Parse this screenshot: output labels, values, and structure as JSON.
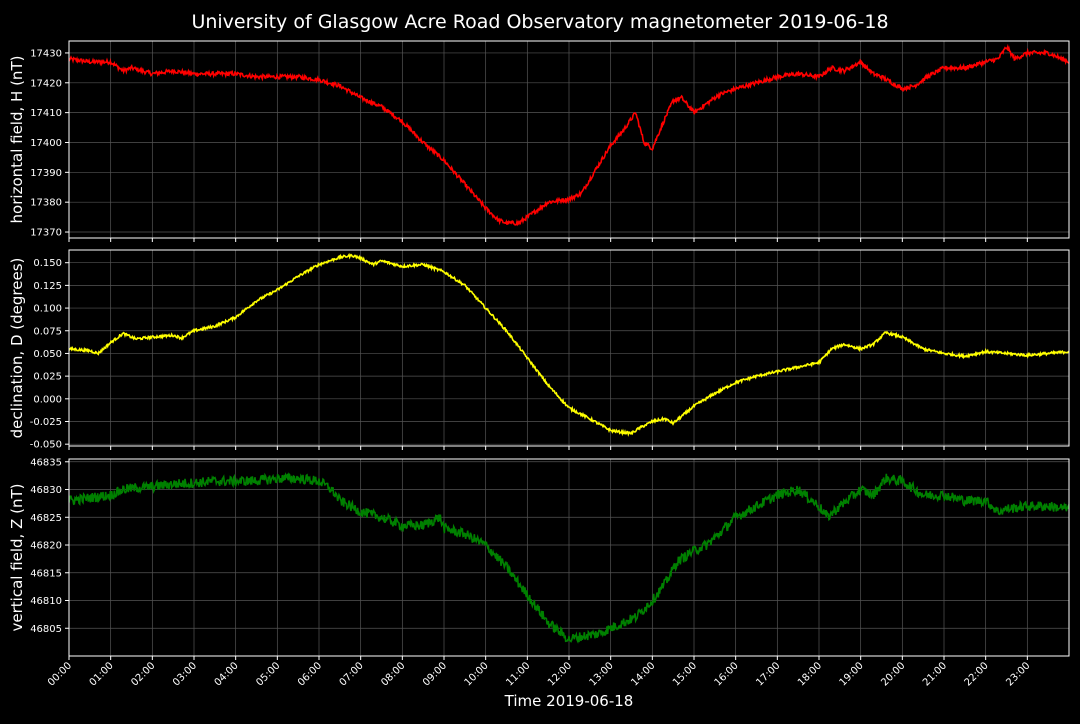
{
  "chart_data": {
    "type": "line",
    "title": "University of Glasgow Acre Road Observatory magnetometer 2019-06-18",
    "xlabel": "Time 2019-06-18",
    "x_unit": "hour of day",
    "xlim": [
      0,
      24
    ],
    "x_ticks": [
      "00:00",
      "01:00",
      "02:00",
      "03:00",
      "04:00",
      "05:00",
      "06:00",
      "07:00",
      "08:00",
      "09:00",
      "10:00",
      "11:00",
      "12:00",
      "13:00",
      "14:00",
      "15:00",
      "16:00",
      "17:00",
      "18:00",
      "19:00",
      "20:00",
      "21:00",
      "22:00",
      "23:00"
    ],
    "grid": true,
    "panels": [
      {
        "ylabel": "horizontal field, H (nT)",
        "color": "#ff0000",
        "ylim": [
          17368,
          17434
        ],
        "y_ticks": [
          17370,
          17380,
          17390,
          17400,
          17410,
          17420,
          17430
        ],
        "tick_decimals": 0,
        "noise": 0.7,
        "x": [
          0,
          0.5,
          1,
          1.3,
          1.5,
          2,
          2.5,
          3,
          3.5,
          4,
          4.5,
          5,
          5.5,
          6,
          6.5,
          7,
          7.5,
          8,
          8.5,
          9,
          9.5,
          10,
          10.3,
          10.5,
          10.8,
          11,
          11.3,
          11.5,
          12,
          12.3,
          12.6,
          13,
          13.3,
          13.6,
          13.8,
          14,
          14.3,
          14.5,
          14.7,
          15,
          15.3,
          15.6,
          16,
          16.5,
          17,
          17.5,
          18,
          18.3,
          18.6,
          19,
          19.3,
          19.5,
          20,
          20.3,
          20.6,
          21,
          21.5,
          22,
          22.3,
          22.5,
          22.7,
          23,
          23.5,
          24
        ],
        "y": [
          17428,
          17427,
          17427,
          17424,
          17425,
          17423,
          17424,
          17423,
          17423,
          17423,
          17422,
          17422,
          17422,
          17421,
          17419,
          17415,
          17412,
          17407,
          17400,
          17394,
          17386,
          17378,
          17374,
          17373,
          17373,
          17375,
          17378,
          17380,
          17381,
          17383,
          17390,
          17399,
          17404,
          17410,
          17400,
          17398,
          17408,
          17414,
          17415,
          17410,
          17413,
          17416,
          17418,
          17420,
          17422,
          17423,
          17422,
          17425,
          17424,
          17427,
          17423,
          17422,
          17418,
          17419,
          17422,
          17425,
          17425,
          17427,
          17428,
          17432,
          17428,
          17430,
          17430,
          17427
        ]
      },
      {
        "ylabel": "declination, D (degrees)",
        "color": "#ffff00",
        "ylim": [
          -0.052,
          0.164
        ],
        "y_ticks": [
          -0.05,
          -0.025,
          0.0,
          0.025,
          0.05,
          0.075,
          0.1,
          0.125,
          0.15
        ],
        "tick_decimals": 3,
        "noise": 0.0014,
        "x": [
          0,
          0.5,
          0.7,
          1,
          1.3,
          1.6,
          2,
          2.5,
          2.7,
          3,
          3.5,
          4,
          4.5,
          5,
          5.5,
          6,
          6.5,
          6.8,
          7,
          7.3,
          7.5,
          8,
          8.5,
          9,
          9.5,
          10,
          10.5,
          11,
          11.5,
          12,
          12.5,
          13,
          13.3,
          13.5,
          13.7,
          14,
          14.3,
          14.5,
          15,
          15.5,
          16,
          16.5,
          17,
          17.5,
          18,
          18.3,
          18.6,
          19,
          19.3,
          19.6,
          20,
          20.5,
          21,
          21.5,
          22,
          22.5,
          23,
          23.5,
          24
        ],
        "y": [
          0.055,
          0.053,
          0.05,
          0.062,
          0.072,
          0.066,
          0.068,
          0.07,
          0.067,
          0.075,
          0.08,
          0.09,
          0.108,
          0.12,
          0.135,
          0.148,
          0.156,
          0.158,
          0.155,
          0.148,
          0.152,
          0.146,
          0.148,
          0.14,
          0.125,
          0.1,
          0.075,
          0.045,
          0.015,
          -0.01,
          -0.022,
          -0.035,
          -0.037,
          -0.038,
          -0.032,
          -0.025,
          -0.022,
          -0.027,
          -0.008,
          0.006,
          0.018,
          0.025,
          0.03,
          0.035,
          0.04,
          0.055,
          0.06,
          0.055,
          0.06,
          0.073,
          0.068,
          0.055,
          0.05,
          0.047,
          0.052,
          0.05,
          0.048,
          0.05,
          0.052
        ]
      },
      {
        "ylabel": "vertical field, Z (nT)",
        "color": "#008000",
        "ylim": [
          46800,
          46835.5
        ],
        "y_ticks": [
          46805,
          46810,
          46815,
          46820,
          46825,
          46830,
          46835
        ],
        "tick_decimals": 0,
        "noise": 0.9,
        "x": [
          0,
          0.5,
          1,
          1.3,
          1.6,
          2,
          2.5,
          3,
          3.5,
          4,
          4.5,
          5,
          5.5,
          6,
          6.3,
          6.5,
          7,
          7.5,
          8,
          8.5,
          8.9,
          9,
          9.5,
          10,
          10.5,
          11,
          11.5,
          12,
          12.3,
          12.7,
          13,
          13.3,
          13.6,
          14,
          14.3,
          14.6,
          15,
          15.3,
          15.6,
          16,
          16.5,
          17,
          17.5,
          18,
          18.2,
          18.5,
          19,
          19.3,
          19.6,
          20,
          20.5,
          21,
          21.5,
          22,
          22.3,
          22.5,
          23,
          23.5,
          24
        ],
        "y": [
          46828,
          46828.5,
          46829,
          46830,
          46830.3,
          46830.5,
          46831,
          46831.2,
          46831.5,
          46831.5,
          46831.6,
          46832,
          46832,
          46831.5,
          46830,
          46828,
          46826,
          46825,
          46823.5,
          46823.5,
          46825,
          46823,
          46822,
          46820,
          46816,
          46811,
          46806,
          46803,
          46803.5,
          46804,
          46805,
          46806,
          46807,
          46810,
          46813,
          46817,
          46819,
          46820,
          46822,
          46825,
          46827,
          46829,
          46830,
          46827,
          46825,
          46827,
          46830,
          46829,
          46832,
          46831.5,
          46829,
          46829,
          46828,
          46828,
          46826,
          46826.5,
          46827,
          46827,
          46826.5
        ]
      }
    ]
  }
}
